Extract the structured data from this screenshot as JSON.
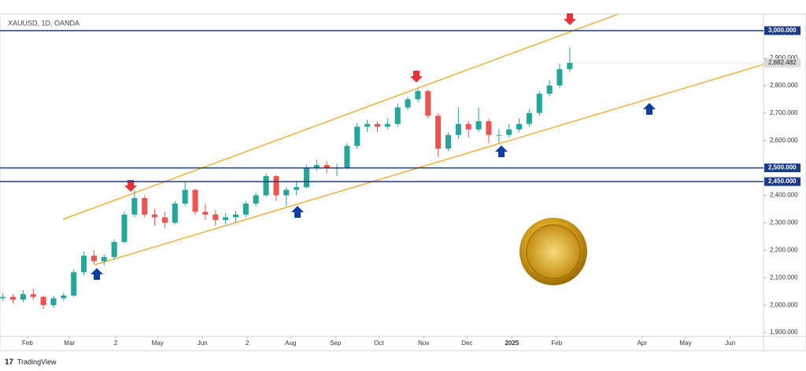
{
  "chart_data": {
    "type": "candlestick",
    "title": "XAUUSD, 1D, OANDA",
    "x": [
      14,
      21,
      28,
      35,
      42,
      49,
      56,
      63,
      70,
      77,
      84,
      91,
      98,
      105,
      112,
      119,
      126,
      133,
      140,
      147,
      154,
      161,
      168,
      175,
      182,
      189,
      196,
      203,
      210,
      217,
      224,
      231,
      238,
      245,
      252,
      259,
      266,
      273,
      280,
      287,
      294,
      301,
      308,
      315,
      322,
      329,
      336,
      343,
      350,
      357,
      364,
      371,
      378,
      385,
      392,
      399,
      406
    ],
    "open": [
      2025,
      2030,
      2020,
      2040,
      2030,
      2000,
      2025,
      2035,
      2120,
      2180,
      2160,
      2175,
      2230,
      2330,
      2390,
      2330,
      2320,
      2300,
      2370,
      2420,
      2340,
      2330,
      2310,
      2320,
      2330,
      2370,
      2400,
      2470,
      2400,
      2420,
      2430,
      2500,
      2510,
      2500,
      2500,
      2580,
      2650,
      2660,
      2650,
      2660,
      2720,
      2750,
      2780,
      2690,
      2570,
      2620,
      2660,
      2640,
      2670,
      2620,
      2620,
      2640,
      2660,
      2700,
      2770,
      2800,
      2860
    ],
    "high": [
      2045,
      2040,
      2055,
      2060,
      2035,
      2035,
      2045,
      2130,
      2195,
      2200,
      2185,
      2240,
      2340,
      2420,
      2400,
      2350,
      2340,
      2380,
      2450,
      2425,
      2370,
      2345,
      2335,
      2345,
      2380,
      2410,
      2480,
      2475,
      2430,
      2450,
      2510,
      2530,
      2525,
      2515,
      2590,
      2665,
      2675,
      2670,
      2680,
      2735,
      2760,
      2790,
      2785,
      2700,
      2630,
      2720,
      2670,
      2720,
      2680,
      2640,
      2660,
      2680,
      2715,
      2780,
      2820,
      2880,
      2940
    ],
    "low": [
      2015,
      2005,
      2010,
      2020,
      1985,
      1990,
      2015,
      2030,
      2110,
      2150,
      2145,
      2165,
      2225,
      2320,
      2320,
      2290,
      2280,
      2295,
      2360,
      2330,
      2310,
      2290,
      2295,
      2300,
      2320,
      2360,
      2395,
      2380,
      2360,
      2400,
      2425,
      2490,
      2480,
      2470,
      2495,
      2570,
      2630,
      2630,
      2640,
      2650,
      2710,
      2740,
      2680,
      2540,
      2560,
      2605,
      2610,
      2630,
      2590,
      2590,
      2610,
      2630,
      2650,
      2690,
      2760,
      2790,
      2850
    ],
    "close": [
      2030,
      2020,
      2040,
      2030,
      2000,
      2025,
      2035,
      2120,
      2180,
      2160,
      2175,
      2230,
      2330,
      2390,
      2330,
      2320,
      2300,
      2370,
      2420,
      2340,
      2330,
      2310,
      2320,
      2330,
      2370,
      2400,
      2470,
      2400,
      2420,
      2430,
      2500,
      2510,
      2500,
      2500,
      2580,
      2650,
      2660,
      2650,
      2660,
      2720,
      2750,
      2780,
      2690,
      2570,
      2620,
      2660,
      2640,
      2670,
      2620,
      2620,
      2640,
      2660,
      2700,
      2770,
      2800,
      2860,
      2882.482
    ],
    "up_color": "#26a69a",
    "down_color": "#ef5350",
    "xlim": [
      12,
      540
    ],
    "ylim": [
      1886,
      3060
    ],
    "xticks": [
      {
        "value": 31,
        "label": "Feb"
      },
      {
        "value": 60,
        "label": "Mar"
      },
      {
        "value": 92,
        "label": "2"
      },
      {
        "value": 121,
        "label": "May"
      },
      {
        "value": 152,
        "label": "Jun"
      },
      {
        "value": 183,
        "label": "2"
      },
      {
        "value": 213,
        "label": "Aug"
      },
      {
        "value": 244,
        "label": "Sep"
      },
      {
        "value": 274,
        "label": "Oct"
      },
      {
        "value": 305,
        "label": "Nov"
      },
      {
        "value": 335,
        "label": "Dec"
      },
      {
        "value": 366,
        "label": "2025"
      },
      {
        "value": 397,
        "label": "Feb"
      },
      {
        "value": 456,
        "label": "Apr"
      },
      {
        "value": 486,
        "label": "May"
      },
      {
        "value": 517,
        "label": "Jun"
      }
    ],
    "yticks": [
      {
        "value": 2900,
        "label": "2,900.000"
      },
      {
        "value": 2800,
        "label": "2,800.000"
      },
      {
        "value": 2700,
        "label": "2,700.000"
      },
      {
        "value": 2600,
        "label": "2,600.000"
      },
      {
        "value": 2400,
        "label": "2,400.000"
      },
      {
        "value": 2300,
        "label": "2,300.000"
      },
      {
        "value": 2200,
        "label": "2,200.000"
      },
      {
        "value": 2100,
        "label": "2,100.000"
      },
      {
        "value": 2000,
        "label": "2,000.000"
      },
      {
        "value": 1900,
        "label": "1,900.000"
      }
    ],
    "levels": [
      {
        "value": 3000,
        "label": "3,000.000"
      },
      {
        "value": 2500,
        "label": "2,500.000"
      },
      {
        "value": 2450,
        "label": "2,450.000"
      }
    ],
    "level_color": "#1a3a8c",
    "last_price": {
      "value": 2882.482,
      "label": "2,882.482"
    }
  },
  "footer": {
    "brand": "TradingView"
  }
}
